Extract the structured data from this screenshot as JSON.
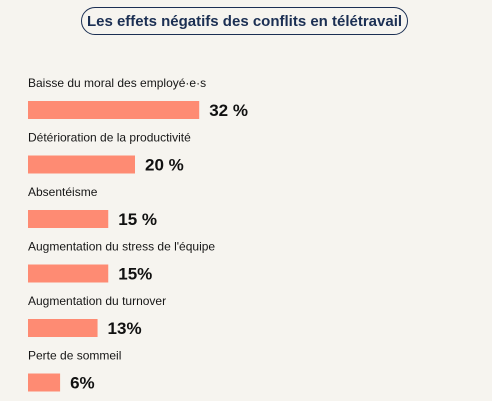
{
  "colors": {
    "background": "#f6f4ef",
    "bar": "#fe8b73",
    "title_border": "#1b2f53",
    "title_text": "#1b2f53"
  },
  "chart_data": {
    "type": "bar",
    "orientation": "horizontal",
    "title": "Les effets négatifs des conflits en télétravail",
    "categories": [
      "Baisse du moral des employé·e·s",
      "Détérioration de la productivité",
      "Absentéisme",
      "Augmentation du stress de l'équipe",
      "Augmentation du turnover",
      "Perte de sommeil"
    ],
    "values": [
      32,
      20,
      15,
      15,
      13,
      6
    ],
    "value_labels": [
      "32 %",
      "20 %",
      "15 %",
      "15%",
      "13%",
      "6%"
    ],
    "unit": "%",
    "grid": false,
    "legend": "none"
  }
}
